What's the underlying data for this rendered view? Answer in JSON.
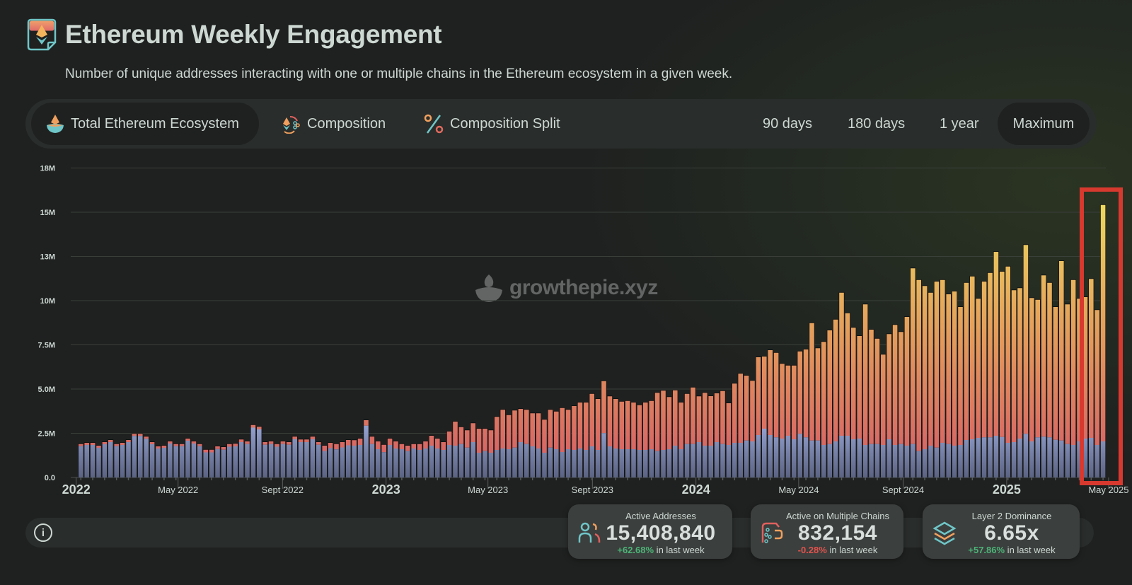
{
  "header": {
    "title": "Ethereum Weekly Engagement",
    "subtitle": "Number of unique addresses interacting with one or multiple chains in the Ethereum ecosystem in a given week.",
    "logo_icon": "ethereum-page-icon"
  },
  "tabs": {
    "views": [
      {
        "label": "Total Ethereum Ecosystem",
        "icon": "ecosystem-icon",
        "active": true
      },
      {
        "label": "Composition",
        "icon": "composition-icon",
        "active": false
      },
      {
        "label": "Composition Split",
        "icon": "percent-icon",
        "active": false
      }
    ],
    "ranges": [
      {
        "label": "90 days",
        "active": false
      },
      {
        "label": "180 days",
        "active": false
      },
      {
        "label": "1 year",
        "active": false
      },
      {
        "label": "Maximum",
        "active": true
      }
    ]
  },
  "watermark": "growthepie.xyz",
  "metrics": [
    {
      "label": "Active Addresses",
      "value": "15,408,840",
      "change": "+62.68%",
      "change_suffix": " in last week",
      "trend": "up",
      "icon": "users-icon"
    },
    {
      "label": "Active on Multiple Chains",
      "value": "832,154",
      "change": "-0.28%",
      "change_suffix": " in last week",
      "trend": "down",
      "icon": "multichain-icon"
    },
    {
      "label": "Layer 2 Dominance",
      "value": "6.65x",
      "change": "+57.86%",
      "change_suffix": " in last week",
      "trend": "up",
      "icon": "layers-icon"
    }
  ],
  "info_icon": "info-icon",
  "colors": {
    "positive": "#4db478",
    "negative": "#e0534e",
    "highlight": "#d7392f",
    "lower_series_top": "#9aa7d6",
    "lower_series_bottom": "#5b6382",
    "upper_series_low": "#d45a67",
    "upper_series_mid": "#e3995c",
    "upper_series_high": "#ecd85e"
  },
  "chart_data": {
    "type": "bar",
    "stacked": true,
    "interval": "week",
    "ylim": [
      0,
      17500000
    ],
    "yticks": [
      {
        "value": 0,
        "label": "0.0"
      },
      {
        "value": 2500000,
        "label": "2.5M"
      },
      {
        "value": 5000000,
        "label": "5.0M"
      },
      {
        "value": 7500000,
        "label": "7.5M"
      },
      {
        "value": 10000000,
        "label": "10M"
      },
      {
        "value": 12500000,
        "label": "13M"
      },
      {
        "value": 15000000,
        "label": "15M"
      },
      {
        "value": 17500000,
        "label": "18M"
      }
    ],
    "xticks": [
      {
        "date": "2022-01-01",
        "label": "2022",
        "major": true
      },
      {
        "date": "2022-05-01",
        "label": "May 2022",
        "major": false
      },
      {
        "date": "2022-09-01",
        "label": "Sept 2022",
        "major": false
      },
      {
        "date": "2023-01-01",
        "label": "2023",
        "major": true
      },
      {
        "date": "2023-05-01",
        "label": "May 2023",
        "major": false
      },
      {
        "date": "2023-09-01",
        "label": "Sept 2023",
        "major": false
      },
      {
        "date": "2024-01-01",
        "label": "2024",
        "major": true
      },
      {
        "date": "2024-05-01",
        "label": "May 2024",
        "major": false
      },
      {
        "date": "2024-09-01",
        "label": "Sept 2024",
        "major": false
      },
      {
        "date": "2025-01-01",
        "label": "2025",
        "major": true
      },
      {
        "date": "2025-05-01",
        "label": "May 2025",
        "major": false
      }
    ],
    "grid": true,
    "highlighted_range": [
      "2025-04-07",
      "2025-04-21"
    ],
    "x": [
      "2022-01-03",
      "2022-01-10",
      "2022-01-17",
      "2022-01-24",
      "2022-01-31",
      "2022-02-07",
      "2022-02-14",
      "2022-02-21",
      "2022-02-28",
      "2022-03-07",
      "2022-03-14",
      "2022-03-21",
      "2022-03-28",
      "2022-04-04",
      "2022-04-11",
      "2022-04-18",
      "2022-04-25",
      "2022-05-02",
      "2022-05-09",
      "2022-05-16",
      "2022-05-23",
      "2022-05-30",
      "2022-06-06",
      "2022-06-13",
      "2022-06-20",
      "2022-06-27",
      "2022-07-04",
      "2022-07-11",
      "2022-07-18",
      "2022-07-25",
      "2022-08-01",
      "2022-08-08",
      "2022-08-15",
      "2022-08-22",
      "2022-08-29",
      "2022-09-05",
      "2022-09-12",
      "2022-09-19",
      "2022-09-26",
      "2022-10-03",
      "2022-10-10",
      "2022-10-17",
      "2022-10-24",
      "2022-10-31",
      "2022-11-07",
      "2022-11-14",
      "2022-11-21",
      "2022-11-28",
      "2022-12-05",
      "2022-12-12",
      "2022-12-19",
      "2022-12-26",
      "2023-01-02",
      "2023-01-09",
      "2023-01-16",
      "2023-01-23",
      "2023-01-30",
      "2023-02-06",
      "2023-02-13",
      "2023-02-20",
      "2023-02-27",
      "2023-03-06",
      "2023-03-13",
      "2023-03-20",
      "2023-03-27",
      "2023-04-03",
      "2023-04-10",
      "2023-04-17",
      "2023-04-24",
      "2023-05-01",
      "2023-05-08",
      "2023-05-15",
      "2023-05-22",
      "2023-05-29",
      "2023-06-05",
      "2023-06-12",
      "2023-06-19",
      "2023-06-26",
      "2023-07-03",
      "2023-07-10",
      "2023-07-17",
      "2023-07-24",
      "2023-07-31",
      "2023-08-07",
      "2023-08-14",
      "2023-08-21",
      "2023-08-28",
      "2023-09-04",
      "2023-09-11",
      "2023-09-18",
      "2023-09-25",
      "2023-10-02",
      "2023-10-09",
      "2023-10-16",
      "2023-10-23",
      "2023-10-30",
      "2023-11-06",
      "2023-11-13",
      "2023-11-20",
      "2023-11-27",
      "2023-12-04",
      "2023-12-11",
      "2023-12-18",
      "2023-12-25",
      "2024-01-01",
      "2024-01-08",
      "2024-01-15",
      "2024-01-22",
      "2024-01-29",
      "2024-02-05",
      "2024-02-12",
      "2024-02-19",
      "2024-02-26",
      "2024-03-04",
      "2024-03-11",
      "2024-03-18",
      "2024-03-25",
      "2024-04-01",
      "2024-04-08",
      "2024-04-15",
      "2024-04-22",
      "2024-04-29",
      "2024-05-06",
      "2024-05-13",
      "2024-05-20",
      "2024-05-27",
      "2024-06-03",
      "2024-06-10",
      "2024-06-17",
      "2024-06-24",
      "2024-07-01",
      "2024-07-08",
      "2024-07-15",
      "2024-07-22",
      "2024-07-29",
      "2024-08-05",
      "2024-08-12",
      "2024-08-19",
      "2024-08-26",
      "2024-09-02",
      "2024-09-09",
      "2024-09-16",
      "2024-09-23",
      "2024-09-30",
      "2024-10-07",
      "2024-10-14",
      "2024-10-21",
      "2024-10-28",
      "2024-11-04",
      "2024-11-11",
      "2024-11-18",
      "2024-11-25",
      "2024-12-02",
      "2024-12-09",
      "2024-12-16",
      "2024-12-23",
      "2024-12-30",
      "2025-01-06",
      "2025-01-13",
      "2025-01-20",
      "2025-01-27",
      "2025-02-03",
      "2025-02-10",
      "2025-02-17",
      "2025-02-24",
      "2025-03-03",
      "2025-03-10",
      "2025-03-17",
      "2025-03-24",
      "2025-03-31",
      "2025-04-07",
      "2025-04-14",
      "2025-04-21"
    ],
    "series": [
      {
        "values_millions": [
          1.77,
          1.84,
          1.84,
          1.68,
          1.88,
          2.0,
          1.77,
          1.84,
          2.0,
          2.35,
          2.35,
          2.19,
          1.88,
          1.64,
          1.68,
          1.92,
          1.77,
          1.77,
          2.08,
          1.92,
          1.77,
          1.42,
          1.42,
          1.61,
          1.57,
          1.74,
          1.76,
          2.0,
          1.89,
          2.82,
          2.72,
          1.85,
          1.89,
          1.74,
          1.89,
          1.85,
          2.16,
          2.0,
          2.0,
          2.16,
          1.85,
          1.5,
          1.66,
          1.59,
          1.7,
          1.82,
          1.8,
          1.84,
          2.93,
          1.89,
          1.6,
          1.43,
          1.84,
          1.64,
          1.6,
          1.49,
          1.64,
          1.56,
          1.64,
          1.8,
          1.64,
          1.56,
          1.84,
          1.8,
          1.89,
          1.69,
          2.0,
          1.4,
          1.49,
          1.4,
          1.56,
          1.64,
          1.6,
          1.69,
          2.0,
          1.89,
          1.76,
          1.64,
          1.4,
          1.69,
          1.6,
          1.44,
          1.6,
          1.56,
          1.64,
          1.56,
          1.76,
          1.56,
          2.51,
          1.76,
          1.64,
          1.6,
          1.6,
          1.6,
          1.56,
          1.56,
          1.6,
          1.49,
          1.56,
          1.6,
          1.8,
          1.6,
          1.89,
          1.89,
          2.0,
          1.8,
          1.8,
          2.0,
          1.89,
          1.84,
          1.96,
          1.96,
          2.09,
          2.04,
          2.4,
          2.76,
          2.4,
          2.27,
          2.2,
          2.36,
          2.16,
          2.47,
          2.27,
          2.09,
          2.09,
          1.84,
          1.89,
          2.04,
          2.36,
          2.36,
          2.16,
          2.2,
          1.84,
          1.89,
          1.89,
          1.84,
          2.16,
          1.84,
          1.89,
          1.8,
          1.89,
          1.49,
          1.6,
          1.8,
          1.69,
          1.96,
          1.89,
          1.8,
          1.84,
          2.12,
          2.16,
          2.24,
          2.27,
          2.27,
          2.36,
          2.29,
          1.96,
          2.0,
          2.2,
          2.47,
          2.04,
          2.27,
          2.31,
          2.27,
          2.13,
          2.09,
          1.89,
          1.84,
          2.04,
          2.2,
          2.24,
          1.84,
          2.04
        ]
      },
      {
        "total_millions": [
          1.89,
          1.96,
          1.96,
          1.8,
          2.0,
          2.12,
          1.89,
          1.96,
          2.12,
          2.47,
          2.47,
          2.31,
          2.0,
          1.76,
          1.8,
          2.04,
          1.89,
          1.89,
          2.2,
          2.04,
          1.89,
          1.57,
          1.57,
          1.76,
          1.72,
          1.89,
          1.91,
          2.15,
          2.04,
          2.97,
          2.87,
          2.0,
          2.04,
          1.89,
          2.04,
          2.0,
          2.31,
          2.15,
          2.15,
          2.31,
          2.0,
          1.8,
          1.96,
          1.89,
          2.0,
          2.12,
          2.11,
          2.2,
          3.24,
          2.31,
          2.04,
          1.85,
          2.2,
          2.04,
          1.89,
          1.8,
          1.89,
          1.89,
          2.04,
          2.36,
          2.2,
          2.0,
          2.6,
          3.16,
          2.85,
          2.67,
          3.07,
          2.76,
          2.76,
          2.67,
          3.43,
          3.83,
          3.53,
          3.79,
          3.88,
          3.83,
          3.63,
          3.63,
          3.27,
          3.83,
          3.73,
          3.93,
          3.83,
          4.04,
          4.24,
          4.24,
          4.73,
          4.44,
          5.45,
          4.59,
          4.44,
          4.29,
          4.33,
          4.24,
          4.09,
          4.24,
          4.33,
          4.79,
          4.91,
          4.55,
          4.93,
          4.24,
          4.73,
          5.09,
          4.59,
          4.79,
          4.6,
          4.76,
          4.89,
          4.2,
          5.31,
          5.87,
          5.76,
          5.47,
          6.8,
          6.84,
          7.2,
          7.05,
          6.43,
          6.33,
          6.33,
          7.13,
          7.24,
          8.73,
          7.31,
          7.67,
          8.32,
          8.93,
          10.45,
          9.29,
          8.47,
          8.0,
          9.79,
          8.36,
          7.85,
          6.95,
          8.11,
          8.63,
          8.23,
          9.08,
          11.83,
          11.17,
          10.83,
          10.45,
          11.08,
          11.17,
          10.36,
          10.52,
          9.64,
          11.01,
          11.37,
          10.11,
          11.08,
          11.57,
          12.76,
          11.64,
          11.93,
          10.59,
          10.71,
          13.15,
          10.15,
          10.05,
          11.43,
          11.01,
          9.64,
          12.24,
          9.79,
          11.17,
          10.11,
          10.2,
          11.23,
          9.47,
          15.41
        ]
      }
    ]
  }
}
